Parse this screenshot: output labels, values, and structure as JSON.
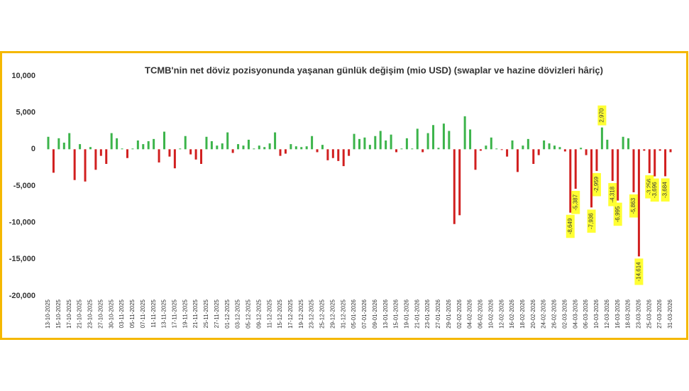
{
  "chart_data": {
    "type": "bar",
    "title": "TCMB'nin net döviz pozisyonunda yaşanan günlük değişim (mio USD) (swaplar ve hazine dövizleri hâriç)",
    "categories": [
      "13-10-2025",
      null,
      "15-10-2025",
      null,
      "17-10-2025",
      null,
      "21-10-2025",
      null,
      "23-10-2025",
      null,
      "27-10-2025",
      null,
      "30-10-2025",
      null,
      "03-11-2025",
      null,
      "05-11-2025",
      null,
      "07-11-2025",
      null,
      "11-11-2025",
      null,
      "13-11-2025",
      null,
      "17-11-2025",
      null,
      "19-11-2025",
      null,
      "21-11-2025",
      null,
      "25-11-2025",
      null,
      "27-11-2025",
      null,
      "01-12-2025",
      null,
      "03-12-2025",
      null,
      "05-12-2025",
      null,
      "09-12-2025",
      null,
      "11-12-2025",
      null,
      "15-12-2025",
      null,
      "17-12-2025",
      null,
      "19-12-2025",
      null,
      "23-12-2025",
      null,
      "25-12-2025",
      null,
      "29-12-2025",
      null,
      "31-12-2025",
      null,
      "05-01-2026",
      null,
      "07-01-2026",
      null,
      "09-01-2026",
      null,
      "13-01-2026",
      null,
      "15-01-2026",
      null,
      "19-01-2026",
      null,
      "21-01-2026",
      null,
      "23-01-2026",
      null,
      "27-01-2026",
      null,
      "29-01-2026",
      null,
      "02-02-2026",
      null,
      "04-02-2026",
      null,
      "06-02-2026",
      null,
      "10-02-2026",
      null,
      "12-02-2026",
      null,
      "16-02-2026",
      null,
      "18-02-2026",
      null,
      "20-02-2026",
      null,
      "24-02-2026",
      null,
      "26-02-2026",
      null,
      "02-03-2026",
      null,
      "04-03-2026",
      null,
      "06-03-2026",
      null,
      "10-03-2026",
      null,
      "12-03-2026",
      null,
      "16-03-2026",
      null,
      "18-03-2026",
      null,
      "23-03-2026",
      null,
      "25-03-2026",
      null,
      "27-03-2026",
      null,
      "31-03-2026"
    ],
    "values": [
      1700,
      -3200,
      1500,
      900,
      2200,
      -4200,
      700,
      -4400,
      300,
      -2800,
      -900,
      -2000,
      2200,
      1500,
      100,
      -1200,
      100,
      1200,
      700,
      1100,
      1400,
      -1800,
      2400,
      -1000,
      -2600,
      100,
      1800,
      -700,
      -1400,
      -2000,
      1700,
      1100,
      500,
      800,
      2300,
      -500,
      700,
      500,
      1300,
      100,
      500,
      300,
      800,
      2300,
      -900,
      -600,
      700,
      400,
      300,
      400,
      1800,
      -400,
      600,
      -1500,
      -1200,
      -1600,
      -2300,
      -900,
      2100,
      1400,
      1600,
      600,
      1800,
      2500,
      1200,
      2000,
      -400,
      100,
      1500,
      100,
      2800,
      -400,
      2200,
      3300,
      200,
      3500,
      2500,
      -10200,
      -9000,
      4500,
      2700,
      -2800,
      -200,
      500,
      1600,
      100,
      -100,
      -1000,
      1200,
      -3100,
      500,
      1400,
      -2000,
      -800,
      1200,
      800,
      500,
      300,
      -300,
      -8649,
      -5387,
      200,
      -800,
      -7936,
      -2959,
      2970,
      1300,
      -4318,
      -6995,
      1700,
      1500,
      -5863,
      -14614,
      -200,
      -3256,
      -3696,
      -200,
      -3684,
      -400
    ],
    "value_labels": [
      null,
      null,
      null,
      null,
      null,
      null,
      null,
      null,
      null,
      null,
      null,
      null,
      null,
      null,
      null,
      null,
      null,
      null,
      null,
      null,
      null,
      null,
      null,
      null,
      null,
      null,
      null,
      null,
      null,
      null,
      null,
      null,
      null,
      null,
      null,
      null,
      null,
      null,
      null,
      null,
      null,
      null,
      null,
      null,
      null,
      null,
      null,
      null,
      null,
      null,
      null,
      null,
      null,
      null,
      null,
      null,
      null,
      null,
      null,
      null,
      null,
      null,
      null,
      null,
      null,
      null,
      null,
      null,
      null,
      null,
      null,
      null,
      null,
      null,
      null,
      null,
      null,
      null,
      null,
      null,
      null,
      null,
      null,
      null,
      null,
      null,
      null,
      null,
      null,
      null,
      null,
      null,
      null,
      null,
      null,
      null,
      null,
      null,
      null,
      "-8,649",
      "-5,387",
      null,
      null,
      "-7,936",
      "-2,959",
      "2,970",
      null,
      "-4,318",
      "-6,995",
      null,
      null,
      "-5,863",
      "-14,614",
      null,
      "-3,256",
      "-3,696",
      null,
      "-3,684",
      null
    ],
    "positive_color": "#3cb44b",
    "negative_color": "#d11f1f",
    "label_background": "#ffff33",
    "ylim": [
      -20000,
      10000
    ],
    "yticks": [
      {
        "value": 10000,
        "label": "10,000"
      },
      {
        "value": 5000,
        "label": "5,000"
      },
      0,
      {
        "value": -5000,
        "label": "-5,000"
      },
      {
        "value": -10000,
        "label": "-10,000"
      },
      {
        "value": -15000,
        "label": "-15,000"
      },
      {
        "value": -20000,
        "label": "-20,000"
      }
    ],
    "grid": false
  }
}
